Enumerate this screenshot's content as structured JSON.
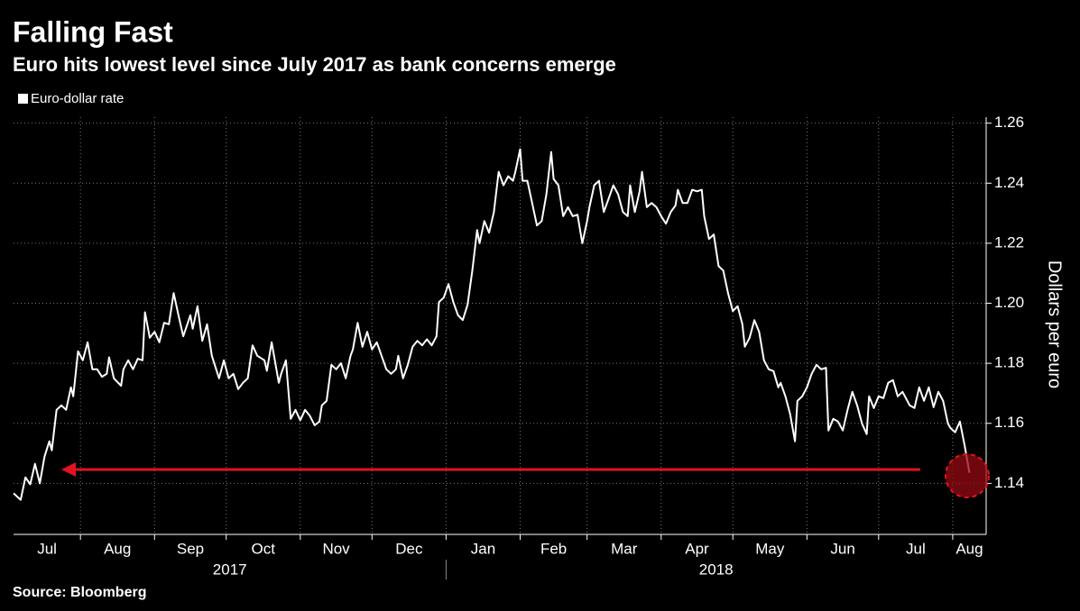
{
  "chart_data": {
    "type": "line",
    "title": "Falling Fast",
    "subtitle": "Euro hits lowest level since July 2017 as bank concerns emerge",
    "source": "Source: Bloomberg",
    "y_axis_label": "Dollars per euro",
    "legend_position": "top-left",
    "grid": true,
    "xlim": [
      3,
      410
    ],
    "xticks": [
      {
        "value": 0,
        "label": "Jul"
      },
      {
        "value": 31,
        "label": "Aug"
      },
      {
        "value": 62,
        "label": "Sep"
      },
      {
        "value": 92,
        "label": "Oct"
      },
      {
        "value": 123,
        "label": "Nov"
      },
      {
        "value": 153,
        "label": "Dec"
      },
      {
        "value": 184,
        "label": "Jan"
      },
      {
        "value": 215,
        "label": "Feb"
      },
      {
        "value": 243,
        "label": "Mar"
      },
      {
        "value": 274,
        "label": "Apr"
      },
      {
        "value": 304,
        "label": "May"
      },
      {
        "value": 335,
        "label": "Jun"
      },
      {
        "value": 365,
        "label": "Jul"
      },
      {
        "value": 396,
        "label": "Aug"
      }
    ],
    "year_labels": [
      {
        "value": 0,
        "label": "2017"
      },
      {
        "value": 184,
        "label": "2018"
      }
    ],
    "ylim": [
      1.123,
      1.262
    ],
    "yticks": [
      1.14,
      1.16,
      1.18,
      {
        "value": 1.2,
        "label": "1.20"
      },
      1.22,
      1.24,
      1.26
    ],
    "x": [
      3,
      6,
      8,
      10,
      12,
      14,
      16,
      18,
      19,
      21,
      23,
      25,
      27,
      28,
      30,
      32,
      34,
      36,
      38,
      40,
      42,
      43,
      45,
      48,
      49,
      51,
      53,
      55,
      57,
      58,
      60,
      62,
      64,
      66,
      68,
      70,
      72,
      74,
      77,
      78,
      80,
      82,
      84,
      86,
      89,
      91,
      93,
      95,
      97,
      99,
      101,
      103,
      105,
      108,
      109,
      111,
      114,
      115,
      117,
      119,
      121,
      123,
      125,
      127,
      129,
      131,
      132,
      134,
      136,
      138,
      140,
      142,
      144,
      145,
      147,
      149,
      151,
      153,
      155,
      157,
      159,
      161,
      163,
      164,
      166,
      168,
      170,
      172,
      174,
      176,
      178,
      180,
      181,
      183,
      185,
      187,
      189,
      191,
      193,
      195,
      197,
      198,
      200,
      202,
      204,
      206,
      208,
      210,
      212,
      213,
      215,
      216,
      218,
      220,
      222,
      224,
      226,
      228,
      229,
      231,
      233,
      235,
      237,
      239,
      241,
      243,
      244,
      246,
      248,
      250,
      252,
      254,
      256,
      258,
      260,
      261,
      263,
      265,
      266,
      268,
      270,
      272,
      274,
      276,
      278,
      280,
      281,
      283,
      285,
      287,
      289,
      291,
      292,
      294,
      296,
      298,
      300,
      302,
      304,
      306,
      308,
      309,
      311,
      313,
      315,
      317,
      319,
      321,
      323,
      324,
      326,
      328,
      330,
      331,
      333,
      335,
      337,
      339,
      341,
      343,
      344,
      346,
      348,
      350,
      352,
      354,
      356,
      358,
      360,
      361,
      363,
      365,
      367,
      369,
      371,
      373,
      375,
      377,
      378,
      380,
      382,
      384,
      386,
      388,
      390,
      392,
      394,
      395,
      397,
      399,
      401,
      403
    ],
    "series": [
      {
        "name": "Euro-dollar rate",
        "color": "#ffffff",
        "values": [
          1.1367,
          1.1345,
          1.142,
          1.1397,
          1.1465,
          1.14,
          1.149,
          1.154,
          1.151,
          1.1645,
          1.166,
          1.1645,
          1.172,
          1.169,
          1.184,
          1.181,
          1.187,
          1.178,
          1.178,
          1.1755,
          1.1765,
          1.182,
          1.175,
          1.1725,
          1.178,
          1.181,
          1.178,
          1.1815,
          1.181,
          1.197,
          1.1885,
          1.1905,
          1.187,
          1.1935,
          1.193,
          1.2034,
          1.196,
          1.189,
          1.196,
          1.1915,
          1.199,
          1.1875,
          1.193,
          1.1825,
          1.175,
          1.181,
          1.175,
          1.1765,
          1.1714,
          1.1735,
          1.175,
          1.186,
          1.1825,
          1.181,
          1.1775,
          1.187,
          1.1735,
          1.1765,
          1.181,
          1.1615,
          1.1645,
          1.161,
          1.1645,
          1.1625,
          1.1594,
          1.1606,
          1.166,
          1.1675,
          1.1795,
          1.178,
          1.18,
          1.175,
          1.1825,
          1.1846,
          1.1935,
          1.1855,
          1.1905,
          1.1846,
          1.187,
          1.1825,
          1.178,
          1.1765,
          1.178,
          1.1825,
          1.175,
          1.1795,
          1.1855,
          1.1875,
          1.186,
          1.188,
          1.186,
          1.189,
          1.2004,
          1.2019,
          1.2064,
          1.2004,
          1.196,
          1.1944,
          1.1995,
          1.2109,
          1.2244,
          1.22,
          1.2274,
          1.2235,
          1.2304,
          1.2438,
          1.2393,
          1.2423,
          1.2408,
          1.2438,
          1.2513,
          1.2408,
          1.2408,
          1.2334,
          1.2259,
          1.2274,
          1.2363,
          1.2504,
          1.2414,
          1.2393,
          1.229,
          1.232,
          1.229,
          1.2295,
          1.22,
          1.2274,
          1.232,
          1.2393,
          1.2408,
          1.2304,
          1.2348,
          1.2393,
          1.2363,
          1.2304,
          1.229,
          1.2393,
          1.2304,
          1.2373,
          1.2438,
          1.232,
          1.2334,
          1.232,
          1.229,
          1.2265,
          1.2304,
          1.2326,
          1.2378,
          1.2334,
          1.2334,
          1.2378,
          1.2373,
          1.2378,
          1.229,
          1.2214,
          1.2229,
          1.2124,
          1.2109,
          1.2034,
          1.1974,
          1.199,
          1.193,
          1.1855,
          1.1885,
          1.1944,
          1.1905,
          1.181,
          1.178,
          1.1774,
          1.172,
          1.1735,
          1.169,
          1.163,
          1.154,
          1.1675,
          1.169,
          1.172,
          1.1765,
          1.1795,
          1.178,
          1.1785,
          1.1576,
          1.1615,
          1.1606,
          1.1576,
          1.1645,
          1.1705,
          1.166,
          1.16,
          1.1564,
          1.169,
          1.1651,
          1.169,
          1.1684,
          1.1735,
          1.1744,
          1.169,
          1.1705,
          1.1675,
          1.166,
          1.1651,
          1.172,
          1.1675,
          1.172,
          1.1654,
          1.1705,
          1.1675,
          1.16,
          1.1585,
          1.157,
          1.1606,
          1.1525,
          1.1435
        ]
      }
    ]
  }
}
